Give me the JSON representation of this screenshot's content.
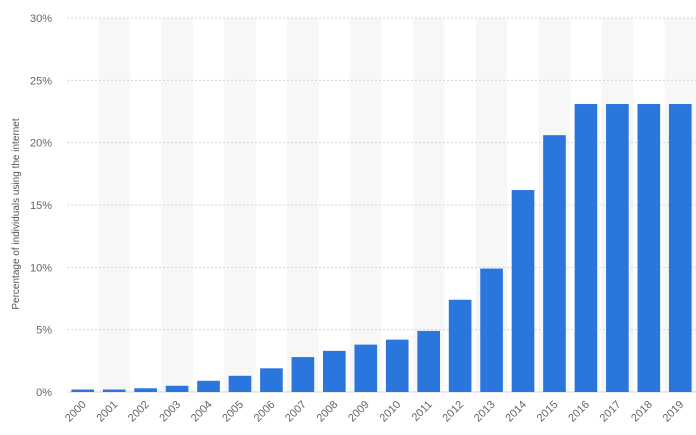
{
  "chart_data": {
    "type": "bar",
    "title": "",
    "xlabel": "",
    "ylabel": "Percentage of individuals using the internet",
    "categories": [
      "2000",
      "2001",
      "2002",
      "2003",
      "2004",
      "2005",
      "2006",
      "2007",
      "2008",
      "2009",
      "2010",
      "2011",
      "2012",
      "2013",
      "2014",
      "2015",
      "2016",
      "2017",
      "2018",
      "2019"
    ],
    "values": [
      0.2,
      0.2,
      0.3,
      0.5,
      0.9,
      1.3,
      1.9,
      2.8,
      3.3,
      3.8,
      4.2,
      4.9,
      7.4,
      9.9,
      16.2,
      20.6,
      23.1,
      23.1,
      23.1,
      23.1
    ],
    "unit": "%",
    "ylim": [
      0,
      30
    ],
    "yticks": [
      "0%",
      "5%",
      "10%",
      "15%",
      "20%",
      "25%",
      "30%"
    ],
    "grid": true,
    "legend": "none",
    "bar_color": "#2a76dd",
    "alt_band_color": "#f7f7f7",
    "grid_color": "#d6d6d6"
  }
}
